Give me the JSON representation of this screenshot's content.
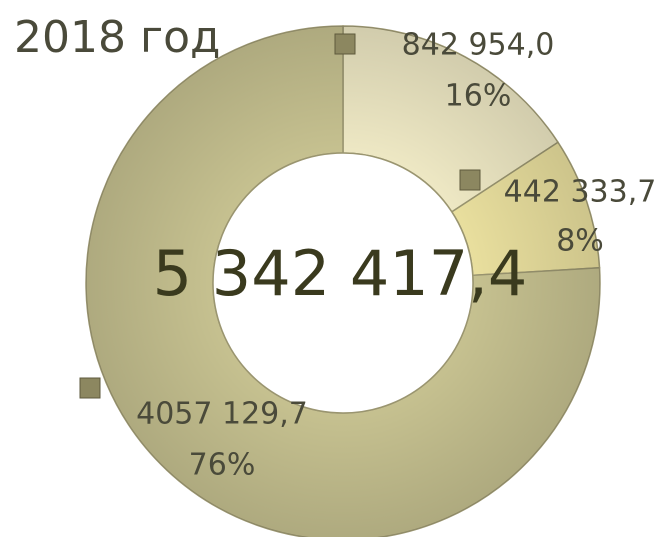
{
  "chart_data": {
    "type": "donut",
    "title": "2018 год",
    "categories": [
      null,
      null,
      null
    ],
    "values": [
      842954.0,
      442333.7,
      4057129.7
    ],
    "value_labels": [
      "842 954,0",
      "442 333,7",
      "4057 129,7"
    ],
    "percents": [
      16,
      8,
      76
    ],
    "percent_labels": [
      "16%",
      "8%",
      "76%"
    ],
    "colors": [
      "#eee8c4",
      "#e9df9e",
      "#c6c190"
    ],
    "total": 5342417.4,
    "total_label": "5 342 417,4"
  }
}
